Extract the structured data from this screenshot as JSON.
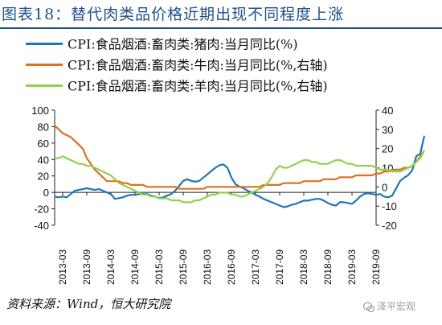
{
  "title": "图表18：替代肉类品价格近期出现不同程度上涨",
  "legend": [
    {
      "label": "CPI:食品烟酒:畜肉类:猪肉:当月同比(%)",
      "color": "#1f77b4"
    },
    {
      "label": "CPI:食品烟酒:畜肉类:牛肉:当月同比(%,右轴)",
      "color": "#e07020"
    },
    {
      "label": "CPI:食品烟酒:畜肉类:羊肉:当月同比(%,右轴)",
      "color": "#92d050"
    }
  ],
  "source": "资料来源：Wind，恒大研究院",
  "watermark": "泽平宏观",
  "chart_data": {
    "type": "line",
    "title": "图表18：替代肉类品价格近期出现不同程度上涨",
    "x_tick_labels": [
      "2013-03",
      "2013-09",
      "2014-03",
      "2014-09",
      "2015-03",
      "2015-09",
      "2016-03",
      "2016-09",
      "2017-03",
      "2017-09",
      "2018-03",
      "2018-09",
      "2019-03",
      "2019-09"
    ],
    "x_start": "2013-01",
    "x_end": "2019-09",
    "left_axis": {
      "ylim": [
        -40,
        100
      ],
      "ticks": [
        -40,
        -20,
        0,
        20,
        40,
        60,
        80,
        100
      ]
    },
    "right_axis": {
      "ylim": [
        -20,
        40
      ],
      "ticks": [
        -20,
        -10,
        0,
        10,
        20,
        30,
        40
      ]
    },
    "series": [
      {
        "name": "CPI:食品烟酒:畜肉类:猪肉:当月同比(%)",
        "axis": "left",
        "color": "#1f77b4",
        "values": [
          -5,
          -6,
          -5,
          -6,
          -2,
          2,
          3,
          4,
          5,
          4,
          3,
          4,
          2,
          0,
          -2,
          -8,
          -7,
          -6,
          -4,
          -3,
          -3,
          -2,
          -2,
          -2,
          -4,
          -5,
          -7,
          -6,
          -4,
          -2,
          2,
          8,
          14,
          16,
          14,
          13,
          14,
          18,
          22,
          26,
          30,
          33,
          34,
          30,
          18,
          10,
          7,
          5,
          2,
          0,
          -3,
          -5,
          -8,
          -10,
          -12,
          -14,
          -16,
          -18,
          -17,
          -15,
          -14,
          -12,
          -10,
          -10,
          -9,
          -8,
          -8,
          -10,
          -13,
          -15,
          -16,
          -12,
          -12,
          -13,
          -14,
          -10,
          -5,
          -2,
          -1,
          -2,
          -3,
          -2,
          -5,
          -6,
          -4,
          5,
          14,
          18,
          21,
          27,
          44,
          47,
          69
        ]
      },
      {
        "name": "CPI:食品烟酒:畜肉类:牛肉:当月同比(%,右轴)",
        "axis": "right",
        "color": "#e07020",
        "values": [
          32,
          30,
          28,
          27,
          26,
          24,
          22,
          20,
          15,
          12,
          9,
          7,
          5,
          3,
          3,
          3,
          3,
          2,
          2,
          1,
          1,
          1,
          1,
          0,
          0,
          0,
          0,
          0,
          0,
          0,
          0,
          -1,
          -1,
          -1,
          -1,
          -1,
          -1,
          -1,
          0,
          0,
          0,
          0,
          0,
          0,
          0,
          0,
          0,
          0,
          0,
          0,
          0,
          0,
          1,
          1,
          1,
          1,
          1,
          2,
          2,
          2,
          2,
          2,
          3,
          3,
          3,
          3,
          3,
          4,
          4,
          4,
          4,
          5,
          5,
          5,
          5,
          6,
          6,
          6,
          6,
          6,
          7,
          7,
          8,
          8,
          9,
          9,
          9,
          10,
          10,
          11,
          13,
          16,
          19
        ]
      },
      {
        "name": "CPI:食品烟酒:畜肉类:羊肉:当月同比(%,右轴)",
        "axis": "right",
        "color": "#92d050",
        "values": [
          15,
          15,
          16,
          15,
          14,
          13,
          12,
          12,
          11,
          11,
          10,
          9,
          8,
          7,
          6,
          4,
          2,
          1,
          0,
          -1,
          -2,
          -3,
          -4,
          -4,
          -5,
          -5,
          -6,
          -6,
          -6,
          -7,
          -7,
          -7,
          -8,
          -8,
          -8,
          -7,
          -7,
          -6,
          -5,
          -4,
          -4,
          -3,
          -3,
          -3,
          -4,
          -4,
          -5,
          -5,
          -4,
          -3,
          -2,
          -1,
          0,
          2,
          5,
          9,
          11,
          10,
          10,
          11,
          12,
          13,
          14,
          14,
          13,
          13,
          12,
          12,
          12,
          13,
          14,
          14,
          13,
          12,
          12,
          11,
          11,
          11,
          11,
          11,
          10,
          9,
          9,
          9,
          8,
          8,
          8,
          9,
          10,
          11,
          13,
          15,
          19
        ]
      }
    ],
    "grid": false,
    "legend_position": "top"
  }
}
